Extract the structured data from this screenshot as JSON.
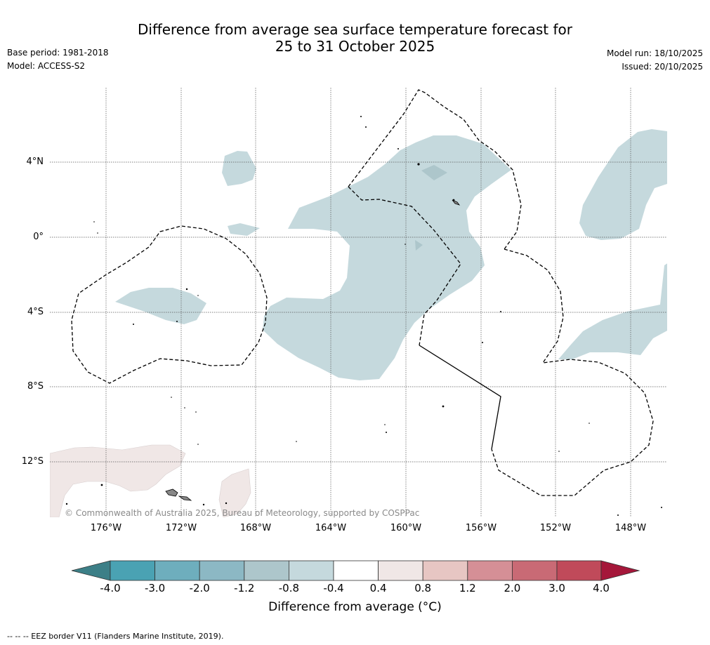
{
  "title": {
    "line1": "Difference from average sea surface temperature forecast for",
    "line2": "25 to 31 October 2025"
  },
  "meta_left": {
    "base_period": "Base period: 1981-2018",
    "model": "Model: ACCESS-S2"
  },
  "meta_right": {
    "model_run": "Model run: 18/10/2025",
    "issued": "Issued: 20/10/2025"
  },
  "map": {
    "lat_labels": [
      "4°N",
      "0°",
      "4°S",
      "8°S",
      "12°S"
    ],
    "lon_labels": [
      "176°W",
      "172°W",
      "168°W",
      "164°W",
      "160°W",
      "156°W",
      "152°W",
      "148°W"
    ],
    "copyright": "© Commonwealth of Australia 2025, Bureau of Meteorology, supported by COSPPac"
  },
  "colorbar": {
    "tick_labels": [
      "-4.0",
      "-3.0",
      "-2.0",
      "-1.2",
      "-0.8",
      "-0.4",
      "0.4",
      "0.8",
      "1.2",
      "2.0",
      "3.0",
      "4.0"
    ],
    "colors": [
      "#3c7f87",
      "#4aa2b3",
      "#6eaebd",
      "#8cb8c4",
      "#adc6cb",
      "#c5d9dd",
      "#ffffff",
      "#f0e7e6",
      "#e7c6c3",
      "#d58f96",
      "#c96a75",
      "#c04a5a",
      "#a5173a"
    ],
    "title": "Difference from average (°C)"
  },
  "footnote": "--  --  -- EEZ border V11 (Flanders Marine Institute, 2019)."
}
